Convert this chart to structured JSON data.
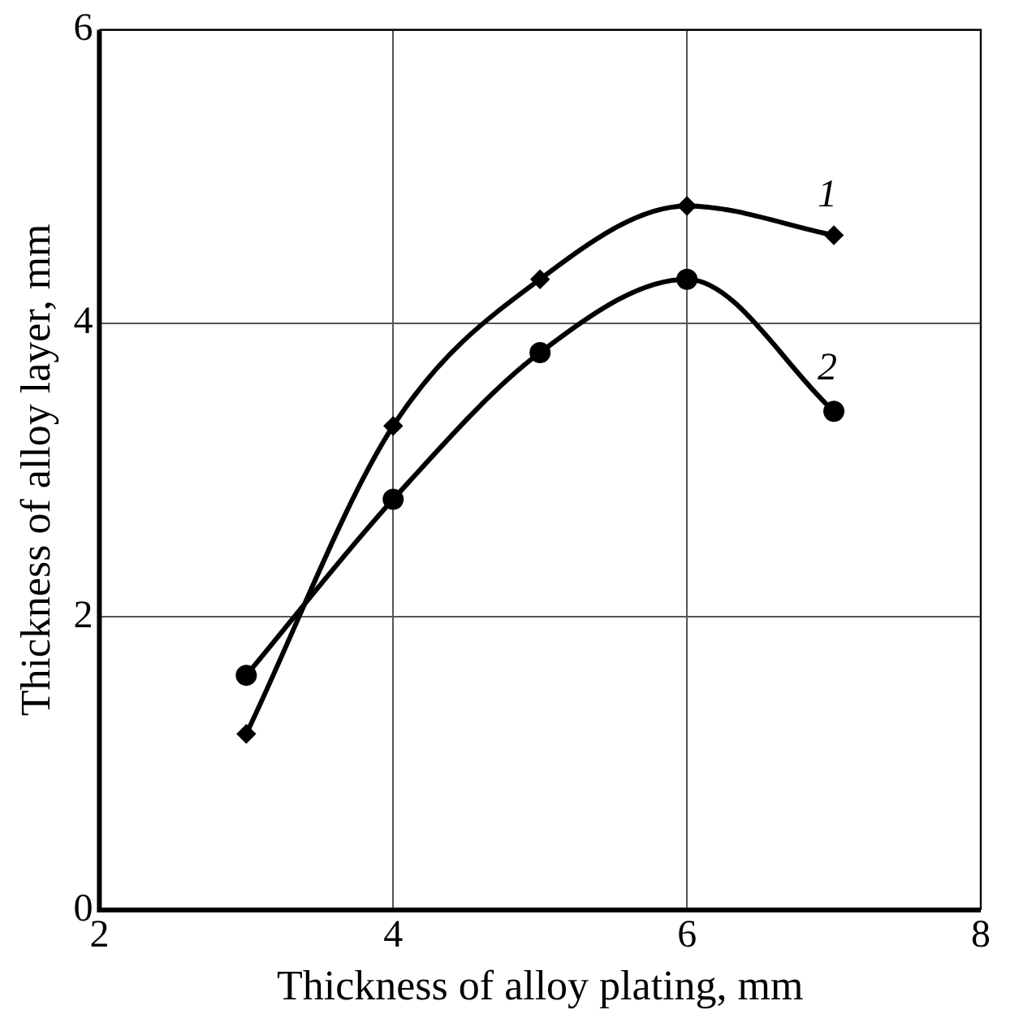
{
  "chart_data": {
    "type": "line",
    "xlabel": "Thickness of alloy plating, mm",
    "ylabel": "Thickness of alloy layer, mm",
    "x": [
      3,
      4,
      5,
      6,
      7
    ],
    "series": [
      {
        "name": "1",
        "color": "#000000",
        "marker": "diamond",
        "values": [
          1.2,
          3.3,
          4.3,
          4.8,
          4.6
        ]
      },
      {
        "name": "2",
        "color": "#000000",
        "marker": "circle",
        "values": [
          1.6,
          2.8,
          3.8,
          4.3,
          3.4
        ]
      }
    ],
    "xlim": [
      2,
      8
    ],
    "xticks": [
      2,
      4,
      6,
      8
    ],
    "ylim": [
      0,
      6
    ],
    "yticks": [
      0,
      2,
      4,
      6
    ],
    "grid": true,
    "legend": false,
    "line_style": "solid"
  }
}
